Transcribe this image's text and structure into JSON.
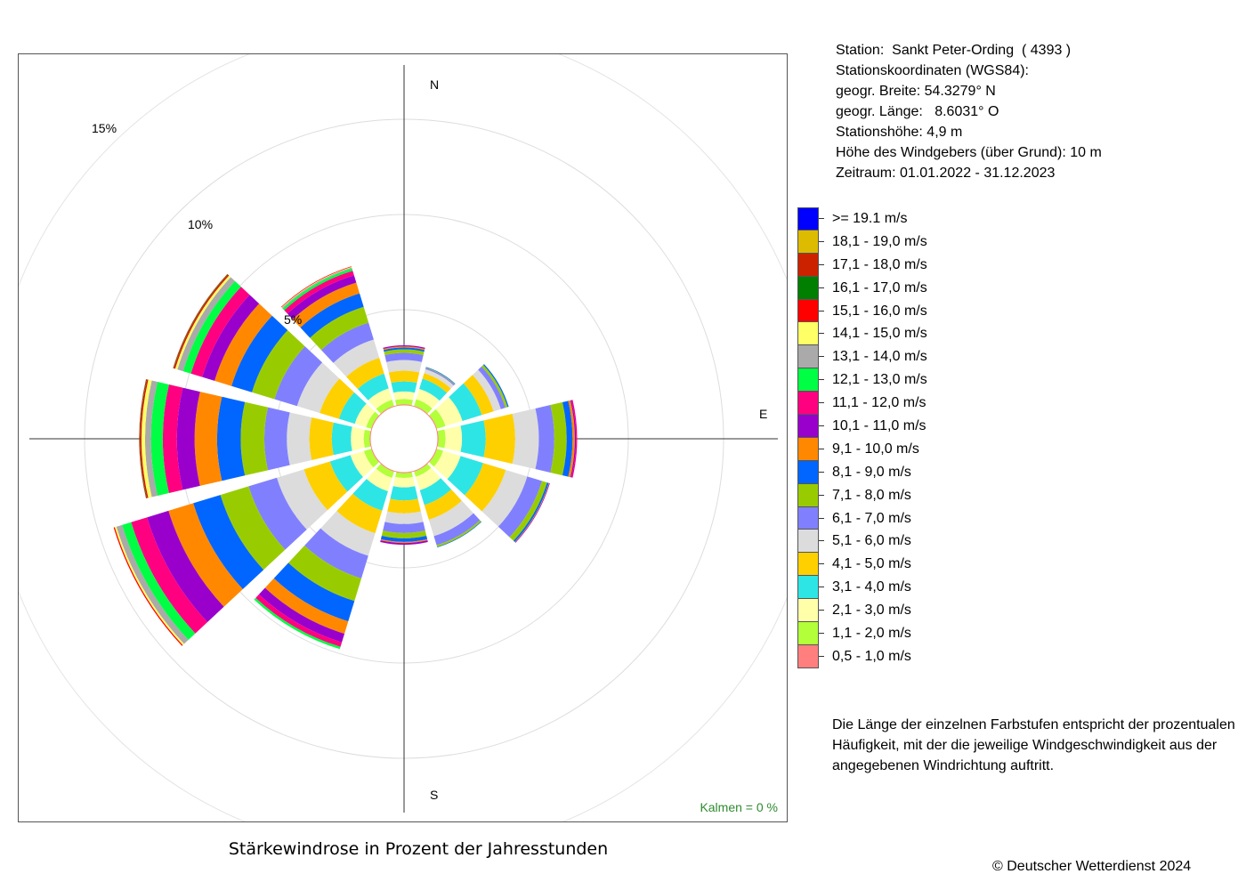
{
  "station": {
    "line1": "Station:  Sankt Peter-Ording  ( 4393 )",
    "line2": "Stationskoordinaten (WGS84):",
    "line3": "geogr. Breite: 54.3279° N",
    "line4": "geogr. Länge:   8.6031° O",
    "line5": "Stationshöhe: 4,9 m",
    "line6": "Höhe des Windgebers (über Grund): 10 m",
    "line7": "Zeitraum: 01.01.2022 - 31.12.2023"
  },
  "explanation": "Die Länge der einzelnen Farbstufen entspricht der prozentualen Häufigkeit, mit der die jeweilige Windgeschwindigkeit aus der angegebenen Windrichtung auftritt.",
  "copyright": "© Deutscher Wetterdienst  2024",
  "calm_note": "Kalmen  =  0 %",
  "chart_data": {
    "type": "wind-rose",
    "title": "Stärkewindrose in Prozent der Jahresstunden",
    "direction_labels": [
      "N",
      "E",
      "S"
    ],
    "ring_labels": [
      "5%",
      "10%",
      "15%"
    ],
    "ring_values": [
      5,
      10,
      15
    ],
    "sectors_deg": [
      0,
      30,
      60,
      90,
      120,
      150,
      180,
      210,
      240,
      270,
      300,
      330
    ],
    "speed_classes": [
      {
        "label": "0,5 - 1,0 m/s",
        "color": "#ff7f7f"
      },
      {
        "label": "1,1 - 2,0 m/s",
        "color": "#b2ff3a"
      },
      {
        "label": "2,1 - 3,0 m/s",
        "color": "#ffffaa"
      },
      {
        "label": "3,1 - 4,0 m/s",
        "color": "#2ee5e5"
      },
      {
        "label": "4,1 - 5,0 m/s",
        "color": "#ffd000"
      },
      {
        "label": "5,1 - 6,0 m/s",
        "color": "#dcdcdc"
      },
      {
        "label": "6,1 - 7,0 m/s",
        "color": "#8080ff"
      },
      {
        "label": "7,1 - 8,0 m/s",
        "color": "#99cc00"
      },
      {
        "label": "8,1 - 9,0 m/s",
        "color": "#0066ff"
      },
      {
        "label": "9,1 - 10,0 m/s",
        "color": "#ff8800"
      },
      {
        "label": "10,1 - 11,0 m/s",
        "color": "#9900cc"
      },
      {
        "label": "11,1 - 12,0 m/s",
        "color": "#ff0080"
      },
      {
        "label": "12,1 - 13,0 m/s",
        "color": "#00ff44"
      },
      {
        "label": "13,1 - 14,0 m/s",
        "color": "#aaaaaa"
      },
      {
        "label": "14,1 - 15,0 m/s",
        "color": "#ffff66"
      },
      {
        "label": "15,1 - 16,0 m/s",
        "color": "#ff0000"
      },
      {
        "label": "16,1 - 17,0 m/s",
        "color": "#007f00"
      },
      {
        "label": "17,1 - 18,0 m/s",
        "color": "#cc2200"
      },
      {
        "label": "18,1 - 19,0 m/s",
        "color": "#ddbb00"
      },
      {
        "label": ">= 19.1 m/s",
        "color": "#0000ff"
      }
    ],
    "series": [
      {
        "direction_deg": 0,
        "values": [
          0.03,
          0.28,
          0.4,
          0.53,
          0.56,
          0.56,
          0.37,
          0.19,
          0.09,
          0.06,
          0.06,
          0,
          0,
          0,
          0,
          0,
          0,
          0,
          0,
          0
        ]
      },
      {
        "direction_deg": 30,
        "values": [
          0.03,
          0.37,
          0.56,
          0.56,
          0.31,
          0.22,
          0.06,
          0.03,
          0.03,
          0,
          0,
          0,
          0,
          0,
          0,
          0,
          0,
          0,
          0,
          0
        ]
      },
      {
        "direction_deg": 60,
        "values": [
          0.03,
          0.47,
          0.93,
          1.06,
          0.65,
          0.4,
          0.25,
          0.12,
          0.06,
          0,
          0,
          0,
          0,
          0,
          0,
          0,
          0,
          0,
          0,
          0
        ]
      },
      {
        "direction_deg": 90,
        "values": [
          0.03,
          0.37,
          0.87,
          1.24,
          1.55,
          1.24,
          0.81,
          0.65,
          0.31,
          0.12,
          0.06,
          0.06,
          0,
          0,
          0,
          0,
          0,
          0,
          0,
          0
        ]
      },
      {
        "direction_deg": 120,
        "values": [
          0.03,
          0.34,
          0.96,
          1.24,
          1.24,
          1.18,
          0.81,
          0.28,
          0.09,
          0.03,
          0.03,
          0,
          0,
          0,
          0,
          0,
          0,
          0,
          0,
          0
        ]
      },
      {
        "direction_deg": 150,
        "values": [
          0.03,
          0.28,
          0.74,
          0.81,
          0.81,
          0.9,
          0.5,
          0.09,
          0.03,
          0,
          0,
          0,
          0,
          0,
          0,
          0,
          0,
          0,
          0,
          0
        ]
      },
      {
        "direction_deg": 180,
        "values": [
          0.03,
          0.25,
          0.5,
          0.68,
          0.68,
          0.56,
          0.47,
          0.28,
          0.19,
          0.06,
          0.09,
          0,
          0,
          0,
          0,
          0,
          0,
          0,
          0,
          0
        ]
      },
      {
        "direction_deg": 210,
        "values": [
          0.03,
          0.34,
          0.74,
          1.06,
          1.24,
          1.24,
          1.24,
          1.24,
          1.12,
          0.68,
          0.47,
          0.25,
          0.12,
          0,
          0,
          0,
          0,
          0,
          0,
          0
        ]
      },
      {
        "direction_deg": 240,
        "values": [
          0.03,
          0.4,
          0.74,
          1.12,
          1.43,
          1.49,
          1.55,
          1.55,
          1.49,
          1.36,
          1.18,
          0.87,
          0.5,
          0.31,
          0.09,
          0.06,
          0,
          0,
          0,
          0
        ]
      },
      {
        "direction_deg": 270,
        "values": [
          0.03,
          0.31,
          0.68,
          1.0,
          1.18,
          1.18,
          1.18,
          1.24,
          1.24,
          1.18,
          0.93,
          0.74,
          0.62,
          0.31,
          0.19,
          0.06,
          0.03,
          0.03,
          0,
          0
        ]
      },
      {
        "direction_deg": 300,
        "values": [
          0.03,
          0.28,
          0.62,
          0.87,
          1.06,
          1.24,
          1.24,
          1.24,
          1.12,
          0.93,
          0.68,
          0.62,
          0.43,
          0.31,
          0.12,
          0.06,
          0.03,
          0.03,
          0,
          0
        ]
      },
      {
        "direction_deg": 330,
        "values": [
          0.03,
          0.34,
          0.62,
          0.81,
          0.87,
          1.0,
          0.93,
          0.87,
          0.74,
          0.59,
          0.4,
          0.25,
          0.12,
          0.06,
          0.03,
          0.03,
          0,
          0,
          0,
          0
        ]
      }
    ],
    "gridlines": true,
    "legend_position": "right"
  }
}
